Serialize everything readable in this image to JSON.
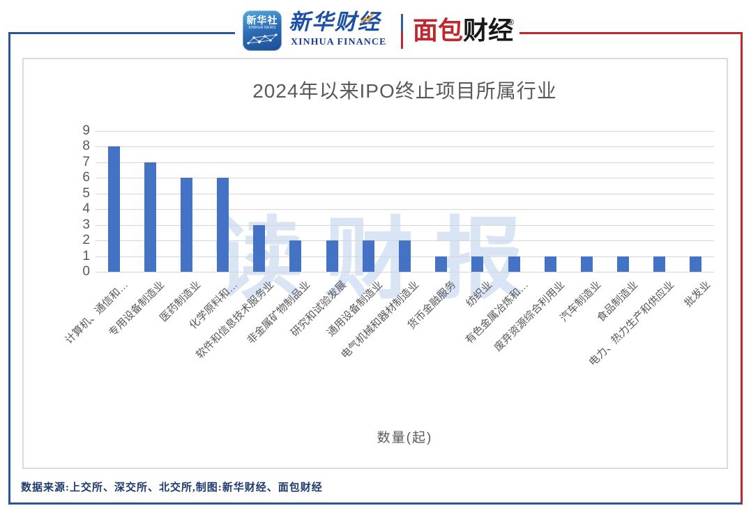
{
  "header": {
    "xinhua_news_logo": {
      "cn": "新华社",
      "en": "XINHUA NEWS"
    },
    "xinhua_finance_logo": {
      "cn": "新华财经",
      "en": "XINHUA FINANCE"
    },
    "mianbao_logo": {
      "part_red": "面包",
      "part_black": "财经",
      "registered_mark": "®"
    }
  },
  "chart_data": {
    "type": "bar",
    "title": "2024年以来IPO终止项目所属行业",
    "categories": [
      "计算机、通信和…",
      "专用设备制造业",
      "医药制造业",
      "化学原料和…",
      "软件和信息技术服务业",
      "非金属矿物制品业",
      "研究和试验发展",
      "通用设备制造业",
      "电气机械和器材制造业",
      "货币金融服务",
      "纺织业",
      "有色金属冶炼和…",
      "废弃资源综合利用业",
      "汽车制造业",
      "食品制造业",
      "电力、热力生产和供应业",
      "批发业"
    ],
    "values": [
      8,
      7,
      6,
      6,
      3,
      2,
      2,
      2,
      2,
      1,
      1,
      1,
      1,
      1,
      1,
      1,
      1
    ],
    "xlabel": "数量(起)",
    "ylabel": "",
    "ylim": [
      0,
      9
    ],
    "ytick_step": 1,
    "grid": true,
    "legend": "none",
    "bar_color": "#4472C4",
    "watermark": "读财报"
  },
  "footer": {
    "source_note": "数据来源:上交所、深交所、北交所,制图:新华财经、面包财经"
  },
  "colors": {
    "frame_blue": "#2A5699",
    "frame_red": "#C0272D",
    "bar_blue": "#4472C4",
    "axis_text_gray": "#595959",
    "gridline_gray": "#D6D6D6",
    "watermark_blue": "#D9E4F4",
    "footer_navy": "#1E3A6E"
  }
}
